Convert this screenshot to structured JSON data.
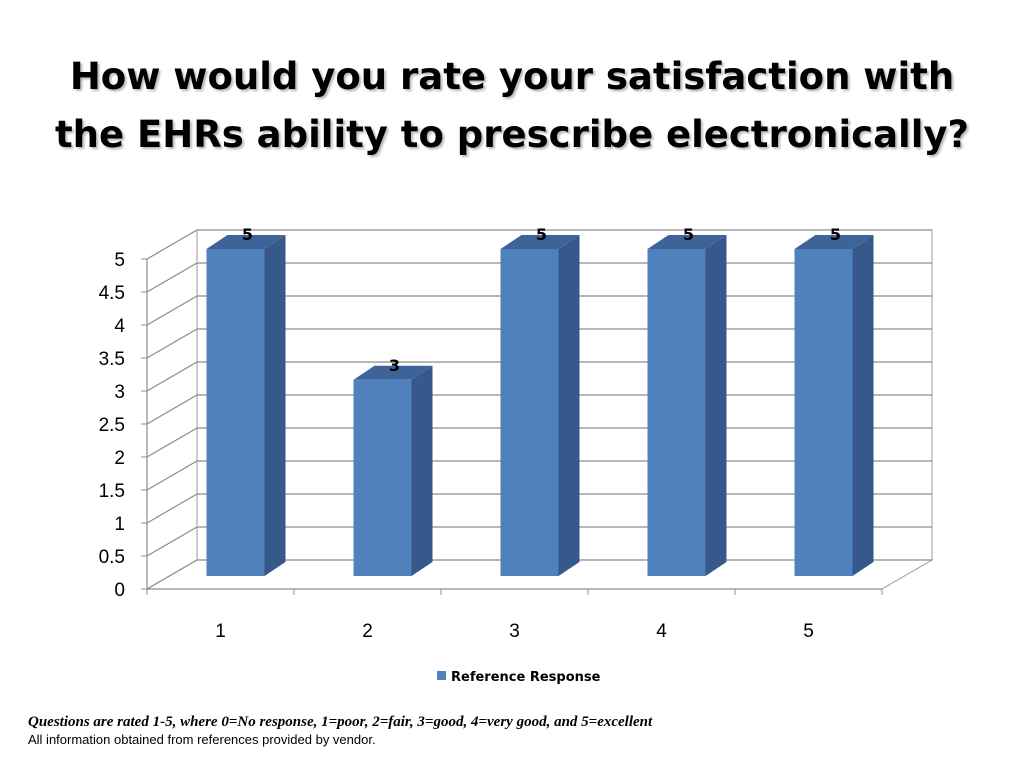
{
  "slide": {
    "title_line1": "How would you rate your satisfaction with",
    "title_line2": "the EHRs ability to prescribe electronically?",
    "footnote_rating": "Questions are rated 1-5, where 0=No response, 1=poor, 2=fair, 3=good, 4=very good, and 5=excellent",
    "footnote_source": "All information obtained from references provided by vendor."
  },
  "chart_data": {
    "type": "bar",
    "categories": [
      "1",
      "2",
      "3",
      "4",
      "5"
    ],
    "series": [
      {
        "name": "Reference Response",
        "values": [
          5,
          3,
          5,
          5,
          5
        ],
        "color": "#4F81BD"
      }
    ],
    "ylim": [
      0,
      5
    ],
    "yticks": [
      "0",
      "0.5",
      "1",
      "1.5",
      "2",
      "2.5",
      "3",
      "3.5",
      "4",
      "4.5",
      "5"
    ],
    "data_labels": [
      "5",
      "3",
      "5",
      "5",
      "5"
    ],
    "grid": true,
    "legend_position": "bottom",
    "style": "3d-column"
  }
}
